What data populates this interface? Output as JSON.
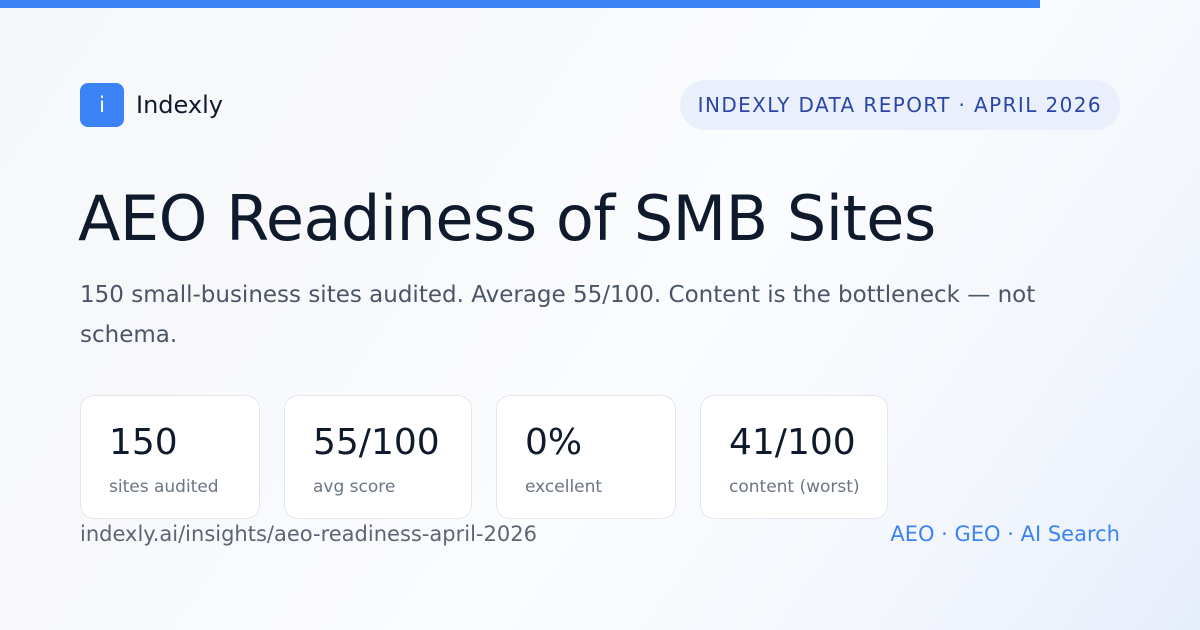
{
  "brand": {
    "logo_letter": "i",
    "name": "Indexly",
    "accent_color": "#3b82f6"
  },
  "badge": {
    "text": "INDEXLY DATA REPORT · APRIL 2026"
  },
  "headline": {
    "title": "AEO Readiness of SMB Sites",
    "subtitle": "150 small-business sites audited. Average 55/100. Content is the bottleneck — not schema."
  },
  "stats": [
    {
      "value": "150",
      "label": "sites audited"
    },
    {
      "value": "55/100",
      "label": "avg score"
    },
    {
      "value": "0%",
      "label": "excellent"
    },
    {
      "value": "41/100",
      "label": "content (worst)"
    }
  ],
  "footer": {
    "url": "indexly.ai/insights/aeo-readiness-april-2026",
    "tags": "AEO · GEO · AI Search"
  }
}
